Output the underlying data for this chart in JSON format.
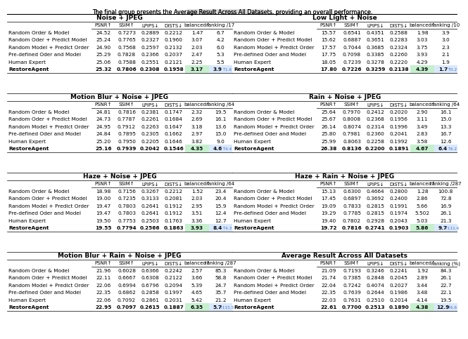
{
  "title_pre": "The final group presents the ",
  "title_bold": "Average Result Across All Datasets",
  "title_post": ", providing an overall performance.",
  "sections": [
    {
      "name": "Noise + JPEG",
      "cols": [
        "PSNR↑",
        "SSIM↑",
        "LPIPS↓",
        "DISTS↓",
        "balanced↑",
        "ranking /17"
      ],
      "rows": [
        {
          "label": "Random Order & Model",
          "vals": [
            "24.52",
            "0.7273",
            "0.2889",
            "0.2212",
            "1.47",
            "6.7"
          ],
          "extra": null
        },
        {
          "label": "Random Oder + Predict Model",
          "vals": [
            "25.24",
            "0.7765",
            "0.2327",
            "0.1960",
            "3.07",
            "4.2"
          ],
          "extra": null
        },
        {
          "label": "Random Model + Predict Order",
          "vals": [
            "24.90",
            "0.7568",
            "0.2597",
            "0.2132",
            "2.03",
            "6.0"
          ],
          "extra": null
        },
        {
          "label": "Pre-defined Oder and Model",
          "vals": [
            "25.29",
            "0.7828",
            "0.2366",
            "0.2037",
            "2.47",
            "5.3"
          ],
          "extra": null
        },
        {
          "label": "Human Expert",
          "vals": [
            "25.06",
            "0.7588",
            "0.2551",
            "0.2121",
            "2.25",
            "5.5"
          ],
          "extra": null
        },
        {
          "label": "RestoreAgent",
          "vals": [
            "25.32",
            "0.7806",
            "0.2308",
            "0.1958",
            "3.17",
            "3.9"
          ],
          "extra": "↑1.6"
        }
      ]
    },
    {
      "name": "Low Light + Noise",
      "cols": [
        "PSNR↑",
        "SSIM↑",
        "LPIPS↓",
        "DISTS↓",
        "balanced↑",
        "ranking /10"
      ],
      "rows": [
        {
          "label": "Random Order & Model",
          "vals": [
            "15.57",
            "0.6541",
            "0.4351",
            "0.2588",
            "1.98",
            "3.9"
          ],
          "extra": null
        },
        {
          "label": "Random Oder + Predict Model",
          "vals": [
            "15.62",
            "0.6887",
            "0.3651",
            "0.2283",
            "3.03",
            "3.0"
          ],
          "extra": null
        },
        {
          "label": "Random Model + Predict Order",
          "vals": [
            "17.57",
            "0.7044",
            "0.3685",
            "0.2324",
            "3.75",
            "2.3"
          ],
          "extra": null
        },
        {
          "label": "Pre-defined Oder and Model",
          "vals": [
            "17.75",
            "0.7098",
            "0.3385",
            "0.2260",
            "3.93",
            "2.1"
          ],
          "extra": null
        },
        {
          "label": "Human Expert",
          "vals": [
            "18.05",
            "0.7239",
            "0.3278",
            "0.2220",
            "4.29",
            "1.9"
          ],
          "extra": null
        },
        {
          "label": "RestoreAgent",
          "vals": [
            "17.80",
            "0.7226",
            "0.3259",
            "0.2138",
            "4.39",
            "1.7"
          ],
          "extra": "↑0.2"
        }
      ]
    },
    {
      "name": "Motion Blur + Noise + JPEG",
      "cols": [
        "PSNR↑",
        "SSIM↑",
        "LPIPS↓",
        "DISTS↓",
        "balanced↑",
        "ranking /64"
      ],
      "rows": [
        {
          "label": "Random Order & Model",
          "vals": [
            "24.81",
            "0.7816",
            "0.2381",
            "0.1747",
            "2.32",
            "19.5"
          ],
          "extra": null
        },
        {
          "label": "Random Oder + Predict Model",
          "vals": [
            "24.73",
            "0.7787",
            "0.2261",
            "0.1684",
            "2.69",
            "16.1"
          ],
          "extra": null
        },
        {
          "label": "Random Model + Predict Order",
          "vals": [
            "24.95",
            "0.7912",
            "0.2263",
            "0.1647",
            "3.18",
            "13.6"
          ],
          "extra": null
        },
        {
          "label": "Pre-defined Oder and Model",
          "vals": [
            "24.84",
            "0.7895",
            "0.2305",
            "0.1662",
            "2.97",
            "15.0"
          ],
          "extra": null
        },
        {
          "label": "Human Expert",
          "vals": [
            "25.20",
            "0.7950",
            "0.2205",
            "0.1646",
            "3.82",
            "9.0"
          ],
          "extra": null
        },
        {
          "label": "RestoreAgent",
          "vals": [
            "25.16",
            "0.7939",
            "0.2042",
            "0.1546",
            "4.35",
            "4.6"
          ],
          "extra": "↑4.4"
        }
      ]
    },
    {
      "name": "Rain + Noise + JPEG",
      "cols": [
        "PSNR↑",
        "SSIM↑",
        "LPIPS↓",
        "DISTS↓",
        "balanced↑",
        "ranking /64"
      ],
      "rows": [
        {
          "label": "Random Order & Model",
          "vals": [
            "25.64",
            "0.7970",
            "0.2412",
            "0.2020",
            "2.90",
            "16.1"
          ],
          "extra": null
        },
        {
          "label": "Random Oder + Predict Model",
          "vals": [
            "25.67",
            "0.8008",
            "0.2368",
            "0.1956",
            "3.11",
            "15.0"
          ],
          "extra": null
        },
        {
          "label": "Random Model + Predict Order",
          "vals": [
            "26.14",
            "0.8074",
            "0.2314",
            "0.1996",
            "3.49",
            "13.3"
          ],
          "extra": null
        },
        {
          "label": "Pre-defined Oder and Model",
          "vals": [
            "25.80",
            "0.7981",
            "0.2360",
            "0.2041",
            "2.83",
            "16.7"
          ],
          "extra": null
        },
        {
          "label": "Human Expert",
          "vals": [
            "25.99",
            "0.8063",
            "0.2258",
            "0.1992",
            "3.58",
            "12.6"
          ],
          "extra": null
        },
        {
          "label": "RestoreAgent",
          "vals": [
            "26.38",
            "0.8136",
            "0.2200",
            "0.1891",
            "4.67",
            "6.4"
          ],
          "extra": "↑6.2"
        }
      ]
    },
    {
      "name": "Haze + Noise + JPEG",
      "cols": [
        "PSNR↑",
        "SSIM↑",
        "LPIPS↓",
        "DISTS↓",
        "balanced↑",
        "ranking /64"
      ],
      "rows": [
        {
          "label": "Random Order & Model",
          "vals": [
            "18.98",
            "0.7156",
            "0.3267",
            "0.2212",
            "1.52",
            "23.4"
          ],
          "extra": null
        },
        {
          "label": "Random Oder + Predict Model",
          "vals": [
            "19.00",
            "0.7235",
            "0.3133",
            "0.2081",
            "2.03",
            "20.4"
          ],
          "extra": null
        },
        {
          "label": "Random Model + Predict Order",
          "vals": [
            "19.47",
            "0.7803",
            "0.2641",
            "0.1912",
            "2.95",
            "15.9"
          ],
          "extra": null
        },
        {
          "label": "Pre-defined Oder and Model",
          "vals": [
            "19.47",
            "0.7803",
            "0.2641",
            "0.1912",
            "3.51",
            "12.4"
          ],
          "extra": null
        },
        {
          "label": "Human Expert",
          "vals": [
            "19.50",
            "0.7753",
            "0.2503",
            "0.1763",
            "3.36",
            "12.7"
          ],
          "extra": null
        },
        {
          "label": "RestoreAgent",
          "vals": [
            "19.55",
            "0.7794",
            "0.2566",
            "0.1863",
            "3.93",
            "8.4"
          ],
          "extra": "↑4.3"
        }
      ]
    },
    {
      "name": "Haze + Rain + Noise + JPEG",
      "cols": [
        "PSNR↑",
        "SSIM↑",
        "LPIPS↓",
        "DISTS↓",
        "balanced↑",
        "ranking /287"
      ],
      "rows": [
        {
          "label": "Random Order & Model",
          "vals": [
            "15.13",
            "0.6300",
            "0.4664",
            "0.2800",
            "1.28",
            "100.8"
          ],
          "extra": null
        },
        {
          "label": "Random Oder + Predict Model",
          "vals": [
            "17.45",
            "0.6897",
            "0.3692",
            "0.2400",
            "2.86",
            "72.8"
          ],
          "extra": null
        },
        {
          "label": "Random Model + Predict Order",
          "vals": [
            "19.09",
            "0.7833",
            "0.2815",
            "0.1991",
            "5.66",
            "16.9"
          ],
          "extra": null
        },
        {
          "label": "Pre-defined Oder and Model",
          "vals": [
            "19.29",
            "0.7785",
            "0.2815",
            "0.1974",
            "5.502",
            "26.1"
          ],
          "extra": null
        },
        {
          "label": "Human Expert",
          "vals": [
            "19.40",
            "0.7802",
            "0.2928",
            "0.2043",
            "5.03",
            "21.3"
          ],
          "extra": null
        },
        {
          "label": "RestoreAgent",
          "vals": [
            "19.72",
            "0.7816",
            "0.2741",
            "0.1903",
            "5.86",
            "9.7"
          ],
          "extra": "↑111.6"
        }
      ]
    },
    {
      "name": "Motion Blur + Rain + Noise + JPEG",
      "cols": [
        "PSNR↑",
        "SSIM↑",
        "LPIPS↓",
        "DISTS↓",
        "balanced↑",
        "ranking /287"
      ],
      "rows": [
        {
          "label": "Random Order & Model",
          "vals": [
            "21.96",
            "0.6028",
            "0.6366",
            "0.2242",
            "2.57",
            "85.3"
          ],
          "extra": null
        },
        {
          "label": "Random Oder + Predict Model",
          "vals": [
            "22.11",
            "0.6667",
            "0.6308",
            "0.2122",
            "3.66",
            "58.8"
          ],
          "extra": null
        },
        {
          "label": "Random Model + Predict Order",
          "vals": [
            "22.06",
            "0.6994",
            "0.6796",
            "0.2094",
            "5.39",
            "24.7"
          ],
          "extra": null
        },
        {
          "label": "Pre-defined Oder and Model",
          "vals": [
            "22.35",
            "0.6862",
            "0.2858",
            "0.1997",
            "4.65",
            "35.7"
          ],
          "extra": null
        },
        {
          "label": "Human Expert",
          "vals": [
            "22.06",
            "0.7092",
            "0.2861",
            "0.2031",
            "5.42",
            "21.2"
          ],
          "extra": null
        },
        {
          "label": "RestoreAgent",
          "vals": [
            "22.95",
            "0.7097",
            "0.2615",
            "0.1887",
            "6.35",
            "5.7"
          ],
          "extra": "↑115.5"
        }
      ]
    },
    {
      "name": "Average Result Across All Datasets",
      "cols": [
        "PSNR↑",
        "SSIM↑",
        "LPIPS↓",
        "DISTS↓",
        "balanced↑",
        "ranking (%)"
      ],
      "rows": [
        {
          "label": "Random Order & Model",
          "vals": [
            "21.09",
            "0.7193",
            "0.3246",
            "0.2241",
            "1.92",
            "84.3"
          ],
          "extra": null
        },
        {
          "label": "Random Oder + Predict Model",
          "vals": [
            "21.74",
            "0.7385",
            "0.2848",
            "0.2045",
            "2.89",
            "26.1"
          ],
          "extra": null
        },
        {
          "label": "Random Model + Predict Order",
          "vals": [
            "22.04",
            "0.7242",
            "0.4074",
            "0.2027",
            "3.44",
            "22.7"
          ],
          "extra": null
        },
        {
          "label": "Pre-defined Oder and Model",
          "vals": [
            "22.35",
            "0.7639",
            "0.2644",
            "0.1986",
            "3.48",
            "22.1"
          ],
          "extra": null
        },
        {
          "label": "Human Expert",
          "vals": [
            "22.03",
            "0.7631",
            "0.2510",
            "0.2014",
            "4.14",
            "19.5"
          ],
          "extra": null
        },
        {
          "label": "RestoreAgent",
          "vals": [
            "22.61",
            "0.7700",
            "0.2513",
            "0.1890",
            "4.38",
            "12.9"
          ],
          "extra": "↑6.6"
        }
      ]
    }
  ],
  "color_balanced": "#c6efce",
  "color_ranking": "#dae8fc",
  "color_extra": "#4472c4",
  "color_title_highlight": "#d9d9d9"
}
